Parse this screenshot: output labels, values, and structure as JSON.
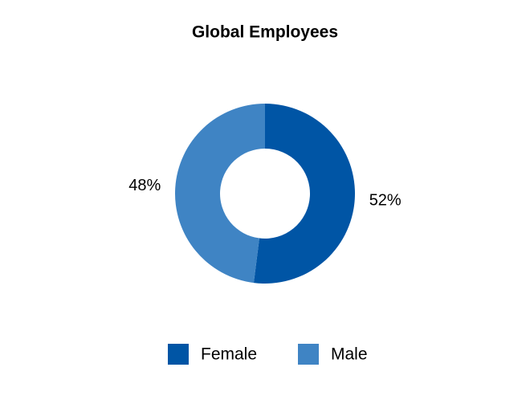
{
  "chart_data": {
    "type": "donut",
    "title": "Global Employees",
    "categories": [
      "Female",
      "Male"
    ],
    "values": [
      52,
      48
    ],
    "value_labels": [
      "52%",
      "48%"
    ],
    "colors": [
      "#0055a5",
      "#3f84c4"
    ]
  }
}
